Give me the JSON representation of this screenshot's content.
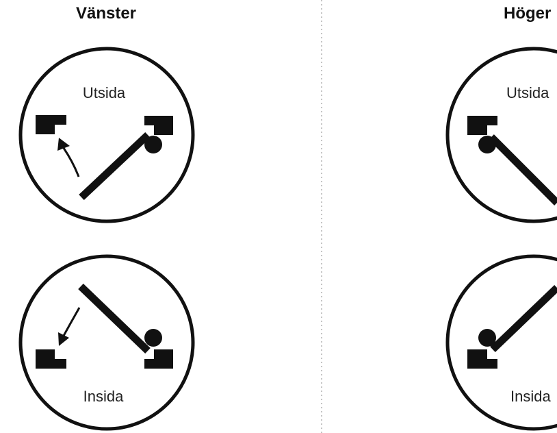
{
  "headings": {
    "left": "Vänster",
    "right": "Höger"
  },
  "diagrams": {
    "left_outside": {
      "label": "Utsida"
    },
    "left_inside": {
      "label": "Insida"
    },
    "right_outside": {
      "label": "Utsida"
    },
    "right_inside": {
      "label": "Insida"
    }
  },
  "colors": {
    "ink": "#111111",
    "divider": "#b0b0b0",
    "background": "#ffffff"
  }
}
